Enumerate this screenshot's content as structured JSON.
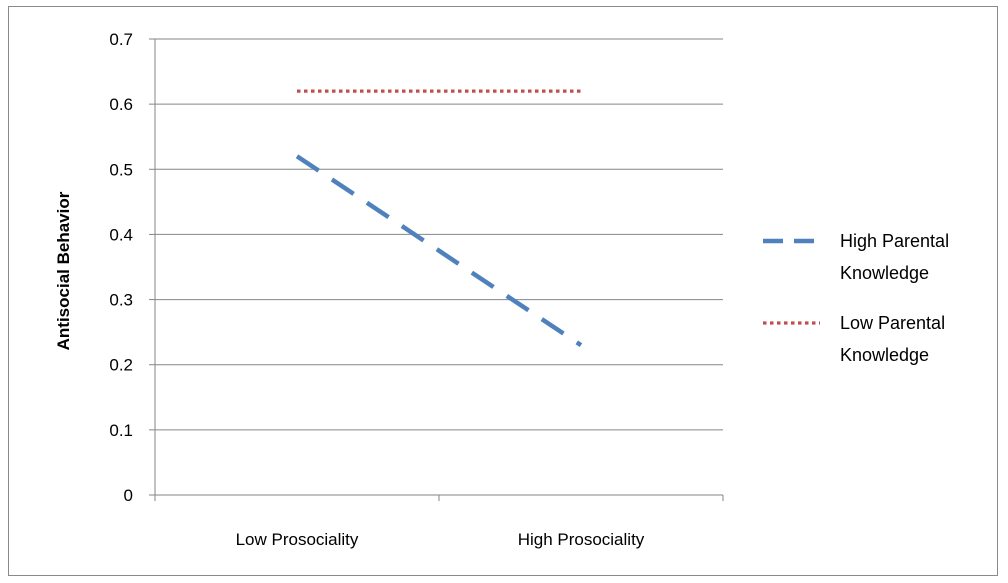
{
  "chart_data": {
    "type": "line",
    "title": "",
    "xlabel": "",
    "ylabel": "Antisocial Behavior",
    "categories": [
      "Low Prosociality",
      "High Prosociality"
    ],
    "ylim": [
      0,
      0.7
    ],
    "yticks": [
      0,
      0.1,
      0.2,
      0.3,
      0.4,
      0.5,
      0.6,
      0.7
    ],
    "ytick_labels": [
      "0",
      "0.1",
      "0.2",
      "0.3",
      "0.4",
      "0.5",
      "0.6",
      "0.7"
    ],
    "grid": true,
    "legend_position": "right",
    "series": [
      {
        "name_lines": [
          "High Parental",
          "Knowledge"
        ],
        "values": [
          0.52,
          0.23
        ],
        "color": "#4f81bd",
        "style": "dashed"
      },
      {
        "name_lines": [
          "Low Parental",
          "Knowledge"
        ],
        "values": [
          0.62,
          0.62
        ],
        "color": "#c0504d",
        "style": "dotted"
      }
    ]
  }
}
